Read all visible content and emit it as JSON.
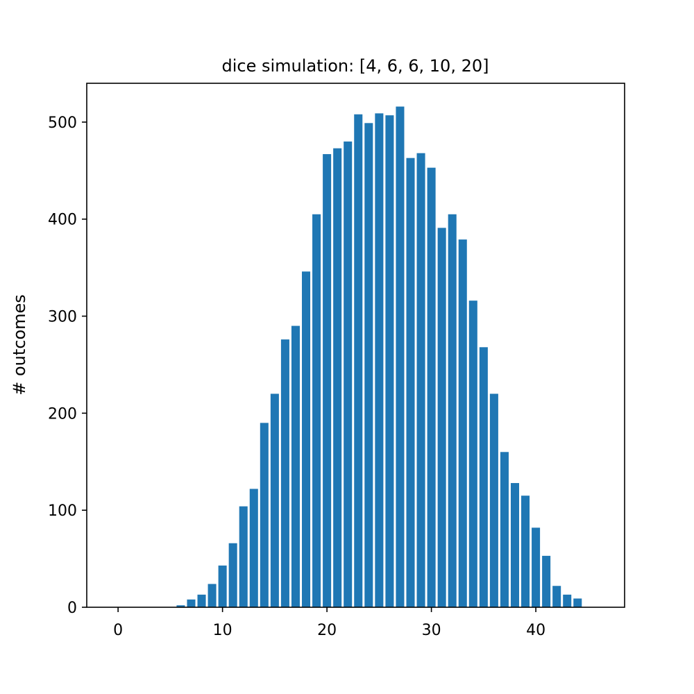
{
  "chart_data": {
    "type": "bar",
    "title": "dice simulation: [4, 6, 6, 10, 20]",
    "xlabel": "",
    "ylabel": "# outcomes",
    "xlim": [
      -3,
      48.5
    ],
    "ylim": [
      0,
      540
    ],
    "xticks": [
      0,
      10,
      20,
      30,
      40
    ],
    "yticks": [
      0,
      100,
      200,
      300,
      400,
      500
    ],
    "grid": false,
    "bar_color": "#1f77b4",
    "x": [
      0,
      1,
      2,
      3,
      4,
      5,
      6,
      7,
      8,
      9,
      10,
      11,
      12,
      13,
      14,
      15,
      16,
      17,
      18,
      19,
      20,
      21,
      22,
      23,
      24,
      25,
      26,
      27,
      28,
      29,
      30,
      31,
      32,
      33,
      34,
      35,
      36,
      37,
      38,
      39,
      40,
      41,
      42,
      43,
      44
    ],
    "values": [
      0,
      0,
      0,
      0,
      0,
      0,
      2,
      8,
      13,
      24,
      43,
      66,
      104,
      122,
      190,
      220,
      276,
      290,
      346,
      405,
      467,
      473,
      480,
      508,
      499,
      509,
      507,
      516,
      463,
      468,
      453,
      391,
      405,
      379,
      316,
      268,
      220,
      160,
      128,
      115,
      82,
      53,
      22,
      13,
      9
    ]
  }
}
